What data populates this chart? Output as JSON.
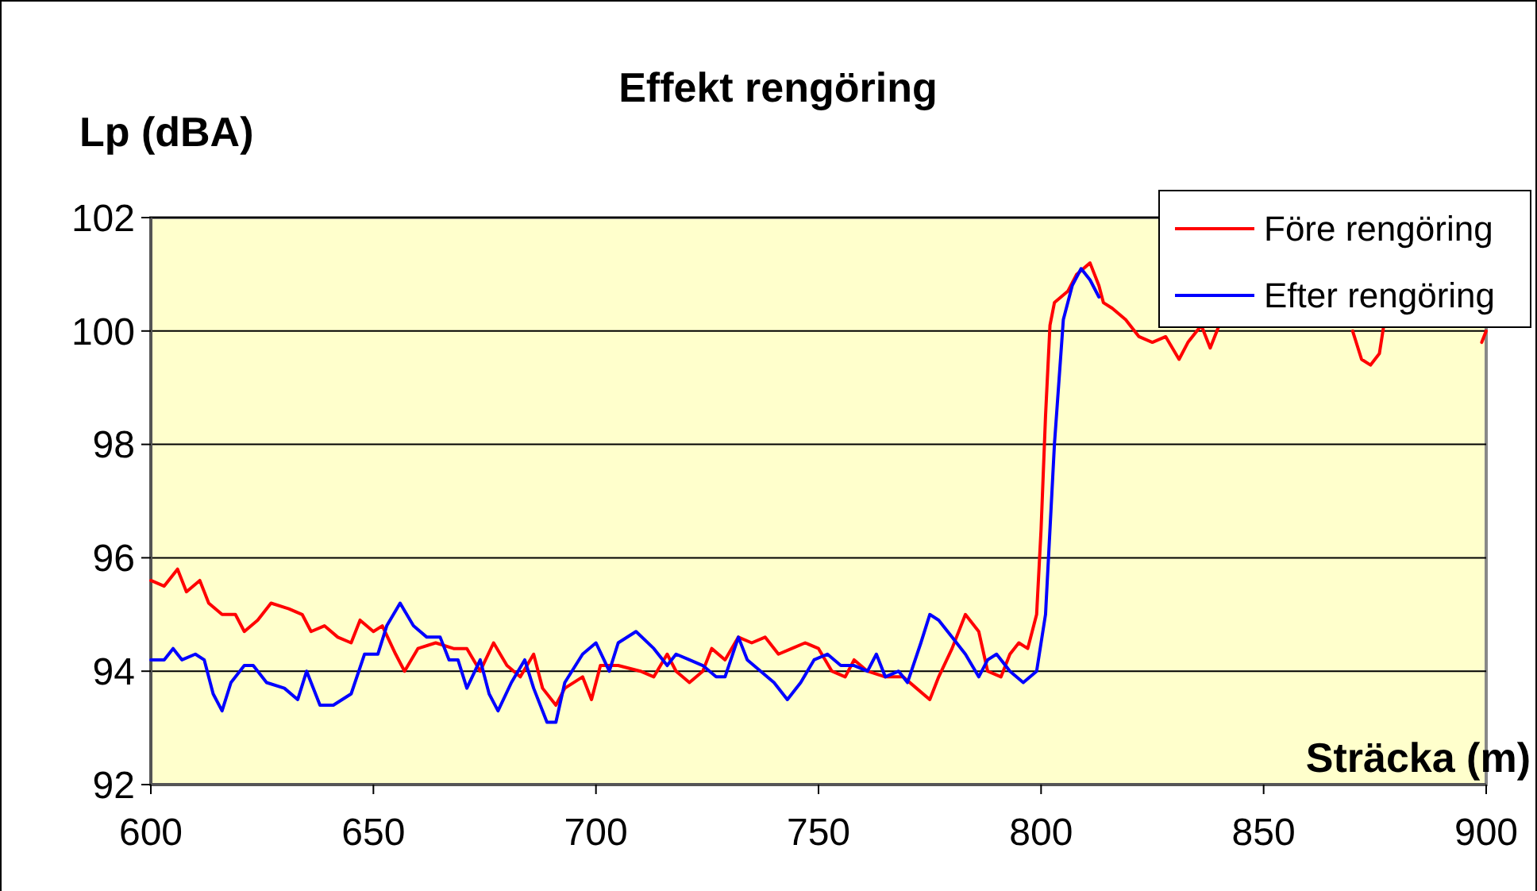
{
  "chart_data": {
    "type": "line",
    "title": "Effekt rengöring",
    "xlabel": "Sträcka (m)",
    "ylabel": "Lp (dBA)",
    "xlim": [
      600,
      900
    ],
    "xticks": [
      600,
      650,
      700,
      750,
      800,
      850,
      900
    ],
    "ylim": [
      92,
      102
    ],
    "yticks": [
      92,
      94,
      96,
      98,
      100,
      102
    ],
    "grid": "y",
    "legend": "top right",
    "marker": "none",
    "line_style": "solid",
    "series": [
      {
        "name": "Före rengöring",
        "color": "#ff0000",
        "x": [
          600,
          603,
          606,
          608,
          611,
          613,
          616,
          619,
          621,
          624,
          627,
          631,
          634,
          636,
          639,
          642,
          645,
          647,
          650,
          652,
          655,
          657,
          660,
          664,
          668,
          671,
          674,
          677,
          680,
          683,
          686,
          688,
          691,
          693,
          697,
          699,
          701,
          705,
          710,
          713,
          716,
          718,
          721,
          724,
          726,
          729,
          732,
          735,
          738,
          741,
          744,
          747,
          750,
          753,
          756,
          758,
          761,
          765,
          769,
          772,
          775,
          777,
          780,
          783,
          786,
          788,
          791,
          793,
          795,
          797,
          799,
          800,
          801,
          802,
          803,
          806,
          808,
          811,
          813,
          814,
          816,
          819,
          822,
          825,
          828,
          831,
          833,
          836,
          838,
          840,
          841,
          869,
          870,
          872,
          874,
          876,
          877,
          878,
          898,
          899,
          900
        ],
        "values": [
          95.6,
          95.5,
          95.8,
          95.4,
          95.6,
          95.2,
          95.0,
          95.0,
          94.7,
          94.9,
          95.2,
          95.1,
          95.0,
          94.7,
          94.8,
          94.6,
          94.5,
          94.9,
          94.7,
          94.8,
          94.3,
          94.0,
          94.4,
          94.5,
          94.4,
          94.4,
          94.0,
          94.5,
          94.1,
          93.9,
          94.3,
          93.7,
          93.4,
          93.7,
          93.9,
          93.5,
          94.1,
          94.1,
          94.0,
          93.9,
          94.3,
          94.0,
          93.8,
          94.0,
          94.4,
          94.2,
          94.6,
          94.5,
          94.6,
          94.3,
          94.4,
          94.5,
          94.4,
          94.0,
          93.9,
          94.2,
          94.0,
          93.9,
          93.9,
          93.7,
          93.5,
          93.9,
          94.4,
          95.0,
          94.7,
          94.0,
          93.9,
          94.3,
          94.5,
          94.4,
          95.0,
          96.5,
          98.5,
          100.1,
          100.5,
          100.7,
          101.0,
          101.2,
          100.8,
          100.5,
          100.4,
          100.2,
          99.9,
          99.8,
          99.9,
          99.5,
          99.8,
          100.1,
          99.7,
          100.1,
          null,
          null,
          100.0,
          99.5,
          99.4,
          99.6,
          100.1,
          null,
          null,
          99.8,
          100.0
        ]
      },
      {
        "name": "Efter rengöring",
        "color": "#0000ff",
        "x": [
          600,
          603,
          605,
          607,
          610,
          612,
          614,
          616,
          618,
          621,
          623,
          626,
          630,
          633,
          635,
          638,
          641,
          645,
          648,
          651,
          653,
          656,
          659,
          662,
          665,
          667,
          669,
          671,
          674,
          676,
          678,
          681,
          684,
          686,
          689,
          691,
          693,
          697,
          700,
          703,
          705,
          709,
          713,
          716,
          718,
          721,
          724,
          727,
          729,
          732,
          734,
          737,
          740,
          743,
          746,
          749,
          752,
          755,
          758,
          761,
          763,
          765,
          768,
          770,
          773,
          775,
          777,
          780,
          783,
          786,
          788,
          790,
          793,
          796,
          799,
          801,
          803,
          805,
          807,
          809,
          811,
          813
        ],
        "values": [
          94.2,
          94.2,
          94.4,
          94.2,
          94.3,
          94.2,
          93.6,
          93.3,
          93.8,
          94.1,
          94.1,
          93.8,
          93.7,
          93.5,
          94.0,
          93.4,
          93.4,
          93.6,
          94.3,
          94.3,
          94.8,
          95.2,
          94.8,
          94.6,
          94.6,
          94.2,
          94.2,
          93.7,
          94.2,
          93.6,
          93.3,
          93.8,
          94.2,
          93.7,
          93.1,
          93.1,
          93.8,
          94.3,
          94.5,
          94.0,
          94.5,
          94.7,
          94.4,
          94.1,
          94.3,
          94.2,
          94.1,
          93.9,
          93.9,
          94.6,
          94.2,
          94.0,
          93.8,
          93.5,
          93.8,
          94.2,
          94.3,
          94.1,
          94.1,
          94.0,
          94.3,
          93.9,
          94.0,
          93.8,
          94.5,
          95.0,
          94.9,
          94.6,
          94.3,
          93.9,
          94.2,
          94.3,
          94.0,
          93.8,
          94.0,
          95.0,
          98.0,
          100.2,
          100.8,
          101.1,
          100.9,
          100.6
        ]
      }
    ]
  }
}
